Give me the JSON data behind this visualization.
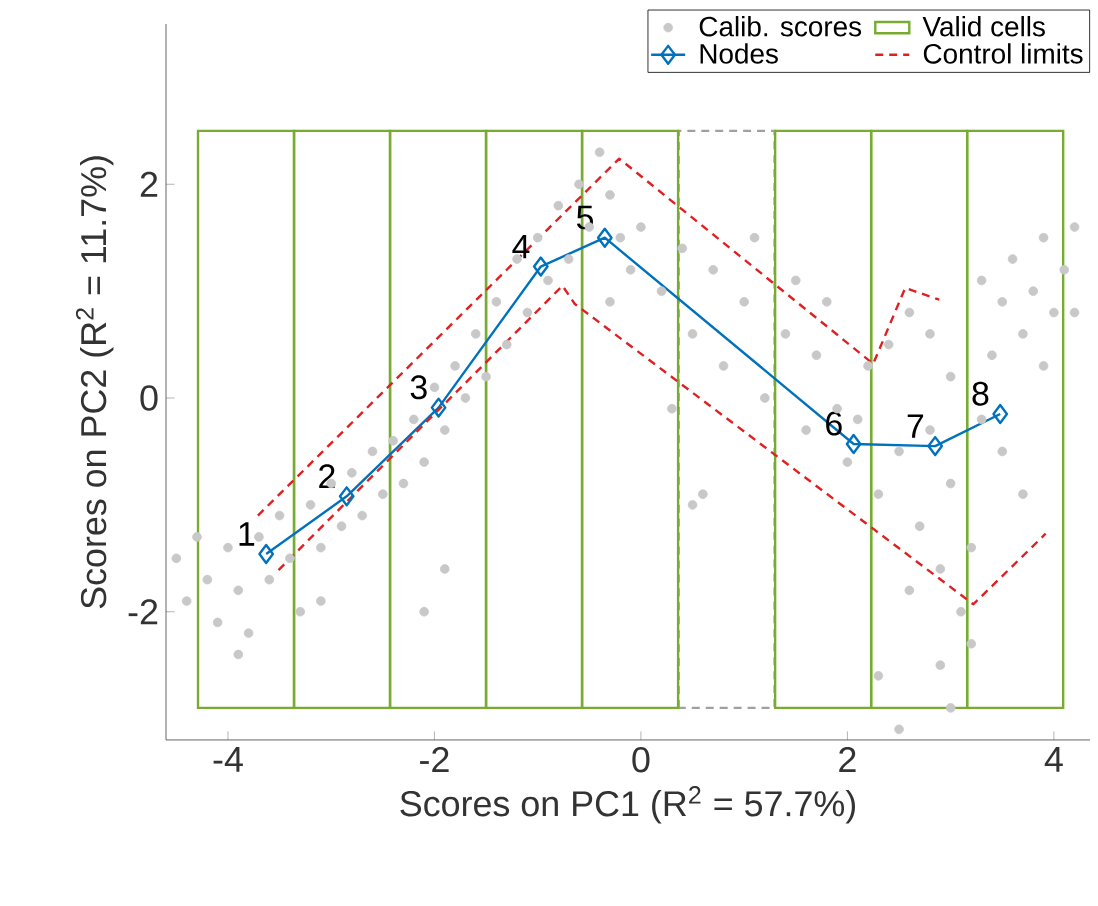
{
  "chart_data": {
    "type": "scatter",
    "xlabel": "Scores on PC1 (R$^{2}$ = 57.7%)",
    "ylabel": "Scores on PC2 (R$^{2}$ = 11.7%)",
    "xlim": [
      -4.6,
      4.35
    ],
    "ylim": [
      -3.2,
      3.5
    ],
    "xticks": [
      -4,
      -2,
      0,
      2,
      4
    ],
    "yticks": [
      -2,
      0,
      2
    ],
    "grid": false,
    "legend": "top right",
    "series": [
      {
        "name": "Calib. scores",
        "marker": "circle",
        "color": "#c8c8c8",
        "x": [
          -4.5,
          -4.4,
          -4.3,
          -4.2,
          -4.1,
          -4.0,
          -3.9,
          -3.8,
          -3.7,
          -3.6,
          -3.5,
          -3.4,
          -3.3,
          -3.2,
          -3.1,
          -3.0,
          -2.9,
          -2.8,
          -2.7,
          -2.6,
          -2.5,
          -2.4,
          -2.3,
          -2.2,
          -2.1,
          -2.0,
          -1.9,
          -1.8,
          -1.7,
          -1.6,
          -1.5,
          -1.4,
          -1.3,
          -1.2,
          -1.1,
          -1.0,
          -0.9,
          -0.8,
          -0.7,
          -0.6,
          -0.5,
          -0.4,
          -0.3,
          -0.2,
          -0.1,
          0.0,
          -3.9,
          -3.1,
          -1.9,
          -2.1,
          0.2,
          0.4,
          0.5,
          0.7,
          0.8,
          1.0,
          1.1,
          1.2,
          1.4,
          1.5,
          1.6,
          1.7,
          1.8,
          1.9,
          -0.3,
          0.3,
          0.6,
          0.5,
          2.0,
          2.1,
          2.2,
          2.3,
          2.4,
          2.5,
          2.6,
          2.7,
          2.8,
          2.9,
          3.0,
          3.1,
          3.2,
          3.3,
          2.8,
          3.0,
          2.6,
          2.9,
          3.0,
          3.2,
          2.3,
          2.5,
          3.4,
          3.5,
          3.6,
          3.7,
          3.8,
          3.9,
          4.0,
          4.1,
          4.2,
          3.9,
          4.2,
          3.5,
          3.7,
          3.3
        ],
        "values": [
          -1.5,
          -1.9,
          -1.3,
          -1.7,
          -2.1,
          -1.4,
          -1.8,
          -2.2,
          -1.3,
          -1.7,
          -1.1,
          -1.5,
          -2.0,
          -1.0,
          -1.4,
          -0.8,
          -1.2,
          -0.7,
          -1.1,
          -0.5,
          -0.9,
          -0.4,
          -0.8,
          -0.2,
          -0.6,
          0.1,
          -0.3,
          0.3,
          0.0,
          0.6,
          0.2,
          0.9,
          0.5,
          1.3,
          0.8,
          1.5,
          1.1,
          1.8,
          1.3,
          2.0,
          1.6,
          2.3,
          1.9,
          1.5,
          1.2,
          1.6,
          -2.4,
          -1.9,
          -1.6,
          -2.0,
          1.0,
          1.4,
          0.6,
          1.2,
          0.3,
          0.9,
          1.5,
          0.0,
          0.6,
          1.1,
          -0.3,
          0.4,
          0.9,
          -0.1,
          0.9,
          -0.1,
          -0.9,
          -1.0,
          -0.6,
          -0.2,
          0.3,
          -0.9,
          0.5,
          -0.5,
          0.8,
          -1.2,
          -0.3,
          -1.6,
          -0.8,
          -2.0,
          -1.4,
          -0.2,
          0.6,
          0.2,
          -1.8,
          -2.5,
          -2.9,
          -2.3,
          -2.6,
          -3.1,
          0.4,
          0.9,
          1.3,
          0.6,
          1.0,
          1.5,
          0.8,
          1.2,
          1.6,
          0.3,
          0.8,
          -0.5,
          -0.9,
          1.1
        ]
      },
      {
        "type": "bar",
        "line_style": "dashed",
        "color": "#a0a0a0",
        "x": [
          0.83
        ],
        "base": [
          -2.9
        ],
        "values": [
          5.4
        ]
      },
      {
        "name": "Valid cells",
        "type": "bar",
        "line_style": "solid",
        "color": "#77ac30",
        "x": [
          -3.825,
          -2.895,
          -1.965,
          -1.035,
          -0.105,
          1.765,
          2.695,
          3.625
        ],
        "base": [
          -2.9,
          -2.9,
          -2.9,
          -2.9,
          -2.9,
          -2.9,
          -2.9,
          -2.9
        ],
        "values": [
          5.4,
          5.4,
          5.4,
          5.4,
          5.4,
          5.4,
          5.4,
          5.4
        ]
      },
      {
        "name": "Nodes",
        "type": "line",
        "marker": "diamond",
        "line_style": "solid",
        "color": "#0072bd",
        "x": [
          -3.63,
          -2.85,
          -1.96,
          -0.97,
          -0.35,
          2.06,
          2.85,
          3.48
        ],
        "values": [
          -1.46,
          -0.92,
          -0.09,
          1.23,
          1.5,
          -0.43,
          -0.45,
          -0.15
        ]
      },
      {
        "name": "Control limits",
        "type": "line",
        "marker": "none",
        "line_style": "dashed",
        "color": "#e02020",
        "x": [
          -3.71,
          -0.21,
          2.25,
          2.56,
          2.89
        ],
        "values": [
          -1.1,
          2.24,
          0.32,
          1.03,
          0.92
        ]
      },
      {
        "type": "line",
        "marker": "none",
        "line_style": "dashed",
        "color": "#e02020",
        "x": [
          -3.51,
          -0.76,
          -0.64,
          3.22,
          3.92
        ],
        "values": [
          -1.61,
          1.05,
          0.88,
          -1.93,
          -1.27
        ]
      }
    ],
    "annotations": [
      {
        "text": "1",
        "x": -3.63,
        "y": -1.46
      },
      {
        "text": "2",
        "x": -2.85,
        "y": -0.92
      },
      {
        "text": "3",
        "x": -1.96,
        "y": -0.09
      },
      {
        "text": "4",
        "x": -0.97,
        "y": 1.23
      },
      {
        "text": "5",
        "x": -0.35,
        "y": 1.5
      },
      {
        "text": "6",
        "x": 2.06,
        "y": -0.43
      },
      {
        "text": "7",
        "x": 2.85,
        "y": -0.45
      },
      {
        "text": "8",
        "x": 3.48,
        "y": -0.15
      }
    ]
  }
}
